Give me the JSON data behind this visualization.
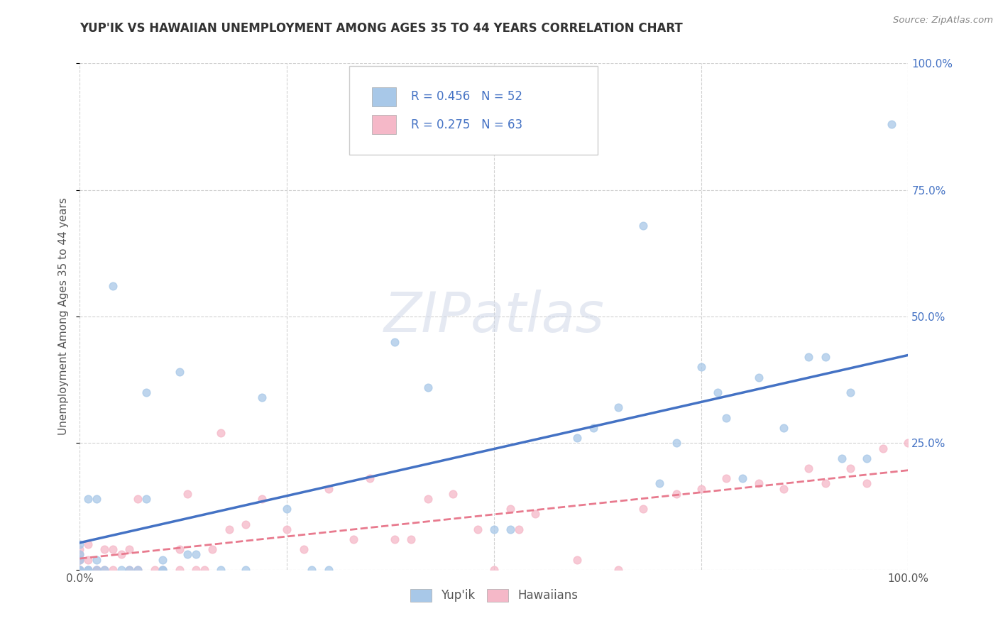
{
  "title": "YUP'IK VS HAWAIIAN UNEMPLOYMENT AMONG AGES 35 TO 44 YEARS CORRELATION CHART",
  "source": "Source: ZipAtlas.com",
  "ylabel": "Unemployment Among Ages 35 to 44 years",
  "xlim": [
    0,
    1.0
  ],
  "ylim": [
    0,
    1.0
  ],
  "xticks": [
    0.0,
    0.25,
    0.5,
    0.75,
    1.0
  ],
  "xticklabels": [
    "0.0%",
    "",
    "",
    "",
    "100.0%"
  ],
  "yticks": [
    0.0,
    0.25,
    0.5,
    0.75,
    1.0
  ],
  "yticklabels_right": [
    "",
    "25.0%",
    "50.0%",
    "75.0%",
    "100.0%"
  ],
  "background_color": "#ffffff",
  "grid_color": "#cccccc",
  "watermark_text": "ZIPatlas",
  "legend_labels": [
    "Yup'ik",
    "Hawaiians"
  ],
  "yupik_color": "#a8c8e8",
  "hawaiian_color": "#f5b8c8",
  "yupik_line_color": "#4472c4",
  "hawaiian_line_color": "#e87a8e",
  "R_yupik": 0.456,
  "N_yupik": 52,
  "R_hawaiian": 0.275,
  "N_hawaiian": 63,
  "legend_text_color": "#4472c4",
  "title_color": "#333333",
  "source_color": "#888888",
  "ylabel_color": "#555555",
  "yupik_x": [
    0.0,
    0.0,
    0.0,
    0.0,
    0.0,
    0.01,
    0.01,
    0.01,
    0.02,
    0.02,
    0.02,
    0.03,
    0.04,
    0.05,
    0.06,
    0.07,
    0.08,
    0.08,
    0.1,
    0.1,
    0.1,
    0.12,
    0.13,
    0.14,
    0.17,
    0.2,
    0.22,
    0.25,
    0.28,
    0.3,
    0.38,
    0.42,
    0.5,
    0.52,
    0.6,
    0.62,
    0.65,
    0.68,
    0.7,
    0.72,
    0.75,
    0.77,
    0.78,
    0.8,
    0.82,
    0.85,
    0.88,
    0.9,
    0.92,
    0.93,
    0.95,
    0.98
  ],
  "yupik_y": [
    0.0,
    0.0,
    0.02,
    0.03,
    0.05,
    0.0,
    0.0,
    0.14,
    0.0,
    0.02,
    0.14,
    0.0,
    0.56,
    0.0,
    0.0,
    0.0,
    0.35,
    0.14,
    0.0,
    0.0,
    0.02,
    0.39,
    0.03,
    0.03,
    0.0,
    0.0,
    0.34,
    0.12,
    0.0,
    0.0,
    0.45,
    0.36,
    0.08,
    0.08,
    0.26,
    0.28,
    0.32,
    0.68,
    0.17,
    0.25,
    0.4,
    0.35,
    0.3,
    0.18,
    0.38,
    0.28,
    0.42,
    0.42,
    0.22,
    0.35,
    0.22,
    0.88
  ],
  "hawaiian_x": [
    0.0,
    0.0,
    0.0,
    0.0,
    0.0,
    0.0,
    0.0,
    0.0,
    0.0,
    0.01,
    0.01,
    0.01,
    0.02,
    0.02,
    0.03,
    0.03,
    0.04,
    0.04,
    0.05,
    0.06,
    0.06,
    0.07,
    0.07,
    0.09,
    0.1,
    0.12,
    0.12,
    0.13,
    0.14,
    0.15,
    0.16,
    0.17,
    0.18,
    0.2,
    0.22,
    0.25,
    0.27,
    0.3,
    0.33,
    0.35,
    0.38,
    0.4,
    0.42,
    0.45,
    0.48,
    0.5,
    0.52,
    0.53,
    0.55,
    0.6,
    0.65,
    0.68,
    0.72,
    0.75,
    0.78,
    0.82,
    0.85,
    0.88,
    0.9,
    0.93,
    0.95,
    0.97,
    1.0
  ],
  "hawaiian_y": [
    0.0,
    0.0,
    0.0,
    0.0,
    0.0,
    0.02,
    0.02,
    0.03,
    0.04,
    0.0,
    0.02,
    0.05,
    0.0,
    0.0,
    0.0,
    0.04,
    0.04,
    0.0,
    0.03,
    0.0,
    0.04,
    0.0,
    0.14,
    0.0,
    0.0,
    0.0,
    0.04,
    0.15,
    0.0,
    0.0,
    0.04,
    0.27,
    0.08,
    0.09,
    0.14,
    0.08,
    0.04,
    0.16,
    0.06,
    0.18,
    0.06,
    0.06,
    0.14,
    0.15,
    0.08,
    0.0,
    0.12,
    0.08,
    0.11,
    0.02,
    0.0,
    0.12,
    0.15,
    0.16,
    0.18,
    0.17,
    0.16,
    0.2,
    0.17,
    0.2,
    0.17,
    0.24,
    0.25
  ]
}
